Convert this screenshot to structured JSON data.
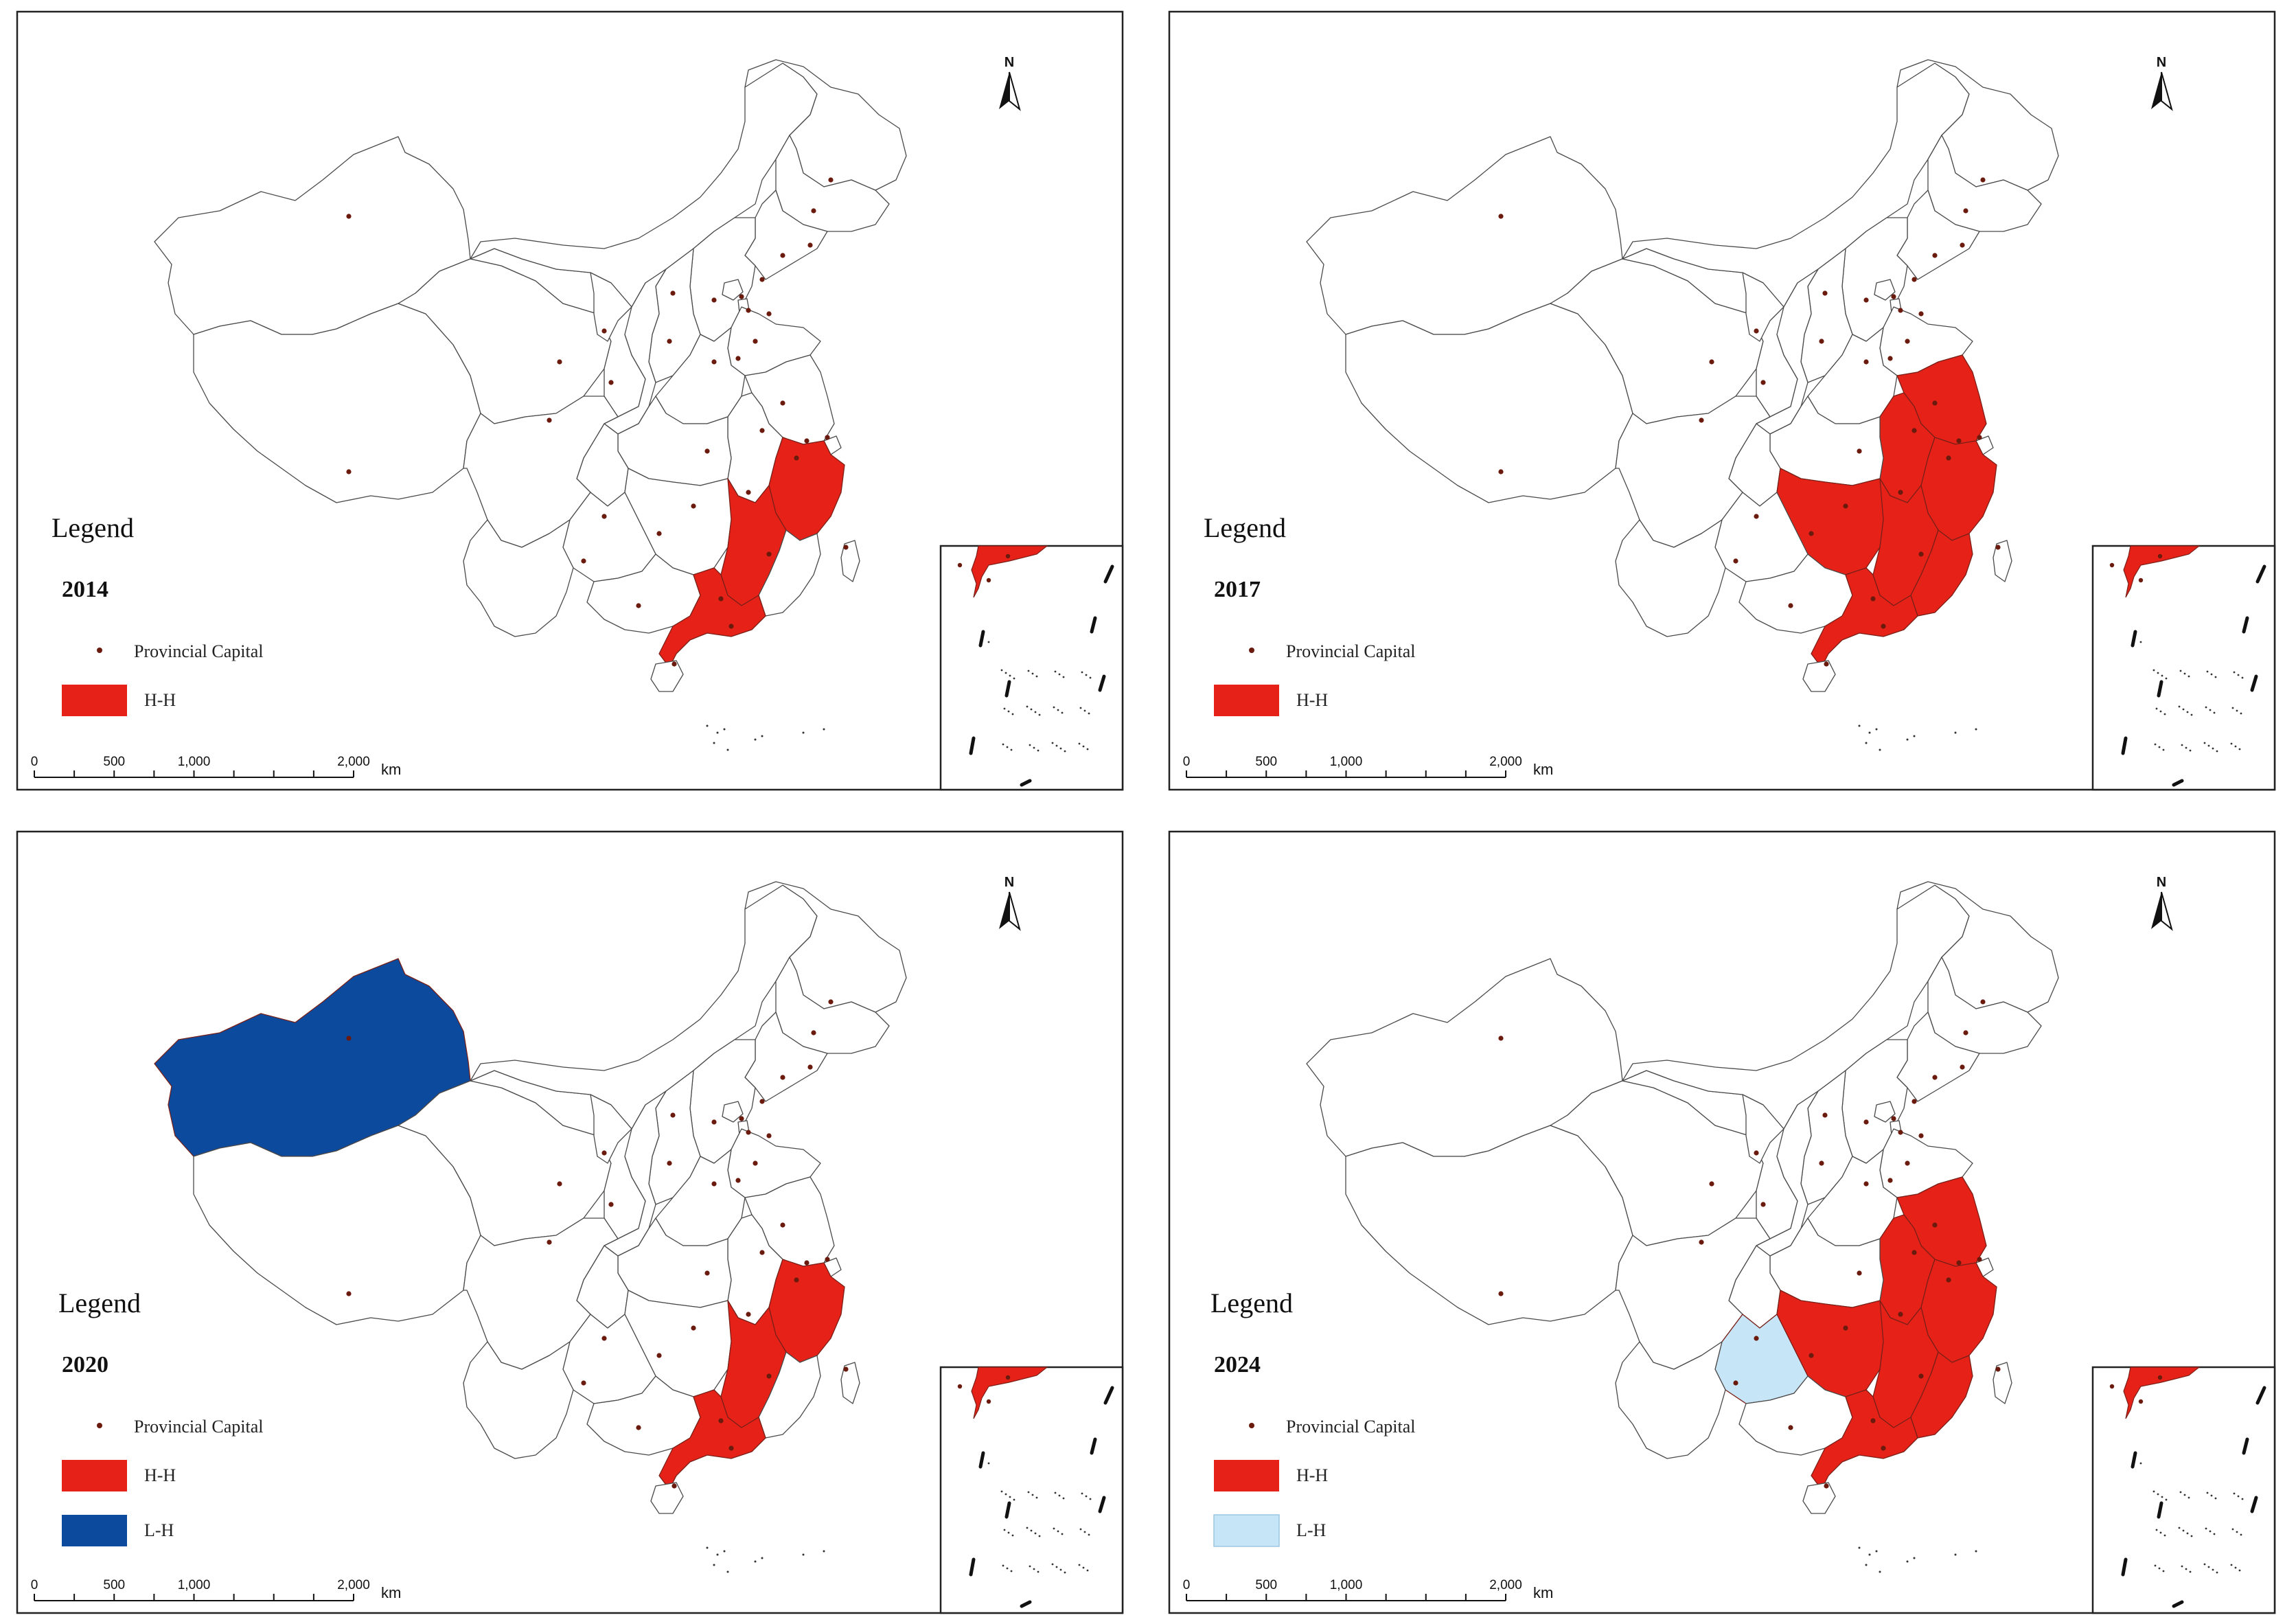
{
  "legend_title": "Legend",
  "capital_label": "Provincial Capital",
  "north_label": "N",
  "scale": {
    "ticks": [
      "0",
      "500",
      "1,000",
      "2,000"
    ],
    "unit": "km"
  },
  "colors": {
    "hh": "#e62118",
    "lh": "#0b4a9c",
    "ll_light": "#c6e6f7",
    "capital_dot": "#6b1a0e",
    "outline": "#4a4a4a"
  },
  "categories": {
    "hh": {
      "label": "H-H",
      "color": "#e62118"
    },
    "lh": {
      "label": "L-H",
      "color": "#0b4a9c"
    },
    "lh_light": {
      "label": "L-H",
      "color": "#c6e6f7"
    }
  },
  "panels": [
    {
      "year": "2014",
      "legend": [
        "hh"
      ],
      "hh": [
        "Guangdong",
        "Jiangxi",
        "Zhejiang"
      ],
      "lh": [],
      "lh_light": []
    },
    {
      "year": "2017",
      "legend": [
        "hh"
      ],
      "hh": [
        "Guangdong",
        "Jiangxi",
        "Zhejiang",
        "Hunan",
        "Fujian",
        "Anhui",
        "Jiangsu"
      ],
      "lh": [],
      "lh_light": []
    },
    {
      "year": "2020",
      "legend": [
        "hh",
        "lh"
      ],
      "hh": [
        "Guangdong",
        "Jiangxi",
        "Zhejiang"
      ],
      "lh": [
        "Xinjiang"
      ],
      "lh_light": []
    },
    {
      "year": "2024",
      "legend": [
        "hh",
        "lh_light"
      ],
      "hh": [
        "Guangdong",
        "Jiangxi",
        "Zhejiang",
        "Hunan",
        "Fujian",
        "Anhui",
        "Jiangsu"
      ],
      "lh": [],
      "lh_light": [
        "Guizhou"
      ]
    }
  ]
}
